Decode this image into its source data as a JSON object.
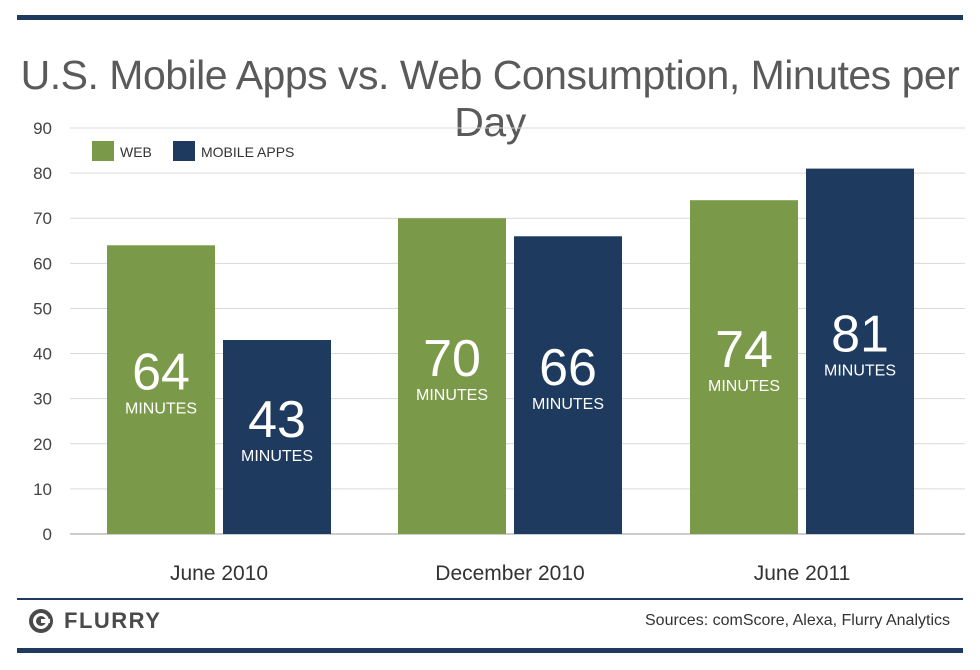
{
  "chart_data": {
    "type": "bar",
    "title": "U.S. Mobile Apps vs. Web Consumption, Minutes per Day",
    "categories": [
      "June 2010",
      "December 2010",
      "June 2011"
    ],
    "series": [
      {
        "name": "WEB",
        "values": [
          64,
          70,
          74
        ],
        "color": "#7a9a4a"
      },
      {
        "name": "MOBILE APPS",
        "values": [
          43,
          66,
          81
        ],
        "color": "#1f3a5f"
      }
    ],
    "value_label_unit": "MINUTES",
    "ylim": [
      0,
      90
    ],
    "yticks": [
      0,
      10,
      20,
      30,
      40,
      50,
      60,
      70,
      80,
      90
    ],
    "grid": true,
    "legend": "top-left"
  },
  "footer": {
    "logo": "FLURRY",
    "sources": "Sources: comScore, Alexa, Flurry Analytics"
  }
}
